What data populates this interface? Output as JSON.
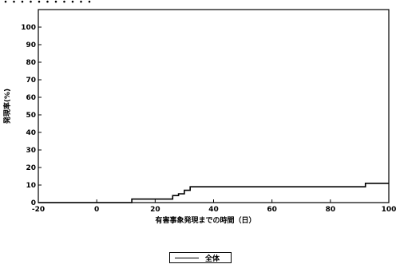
{
  "header_text": "・・・・・・・・・・・",
  "chart_data": {
    "type": "line",
    "step": true,
    "xlabel": "有害事象発現までの時間（日）",
    "ylabel": "発現率(%)",
    "xlim": [
      -20,
      100
    ],
    "ylim": [
      0,
      110
    ],
    "x_ticks": [
      -20,
      0,
      20,
      40,
      60,
      80,
      100
    ],
    "y_ticks": [
      0,
      10,
      20,
      30,
      40,
      50,
      60,
      70,
      80,
      90,
      100
    ],
    "legend": {
      "position": "bottom-center"
    },
    "series": [
      {
        "name": "全体",
        "color": "#000000",
        "points": [
          [
            -20,
            0
          ],
          [
            12,
            0
          ],
          [
            12,
            2
          ],
          [
            26,
            2
          ],
          [
            26,
            4
          ],
          [
            28,
            4
          ],
          [
            28,
            5
          ],
          [
            30,
            5
          ],
          [
            30,
            7
          ],
          [
            32,
            7
          ],
          [
            32,
            9
          ],
          [
            92,
            9
          ],
          [
            92,
            11
          ],
          [
            100,
            11
          ]
        ]
      }
    ]
  }
}
